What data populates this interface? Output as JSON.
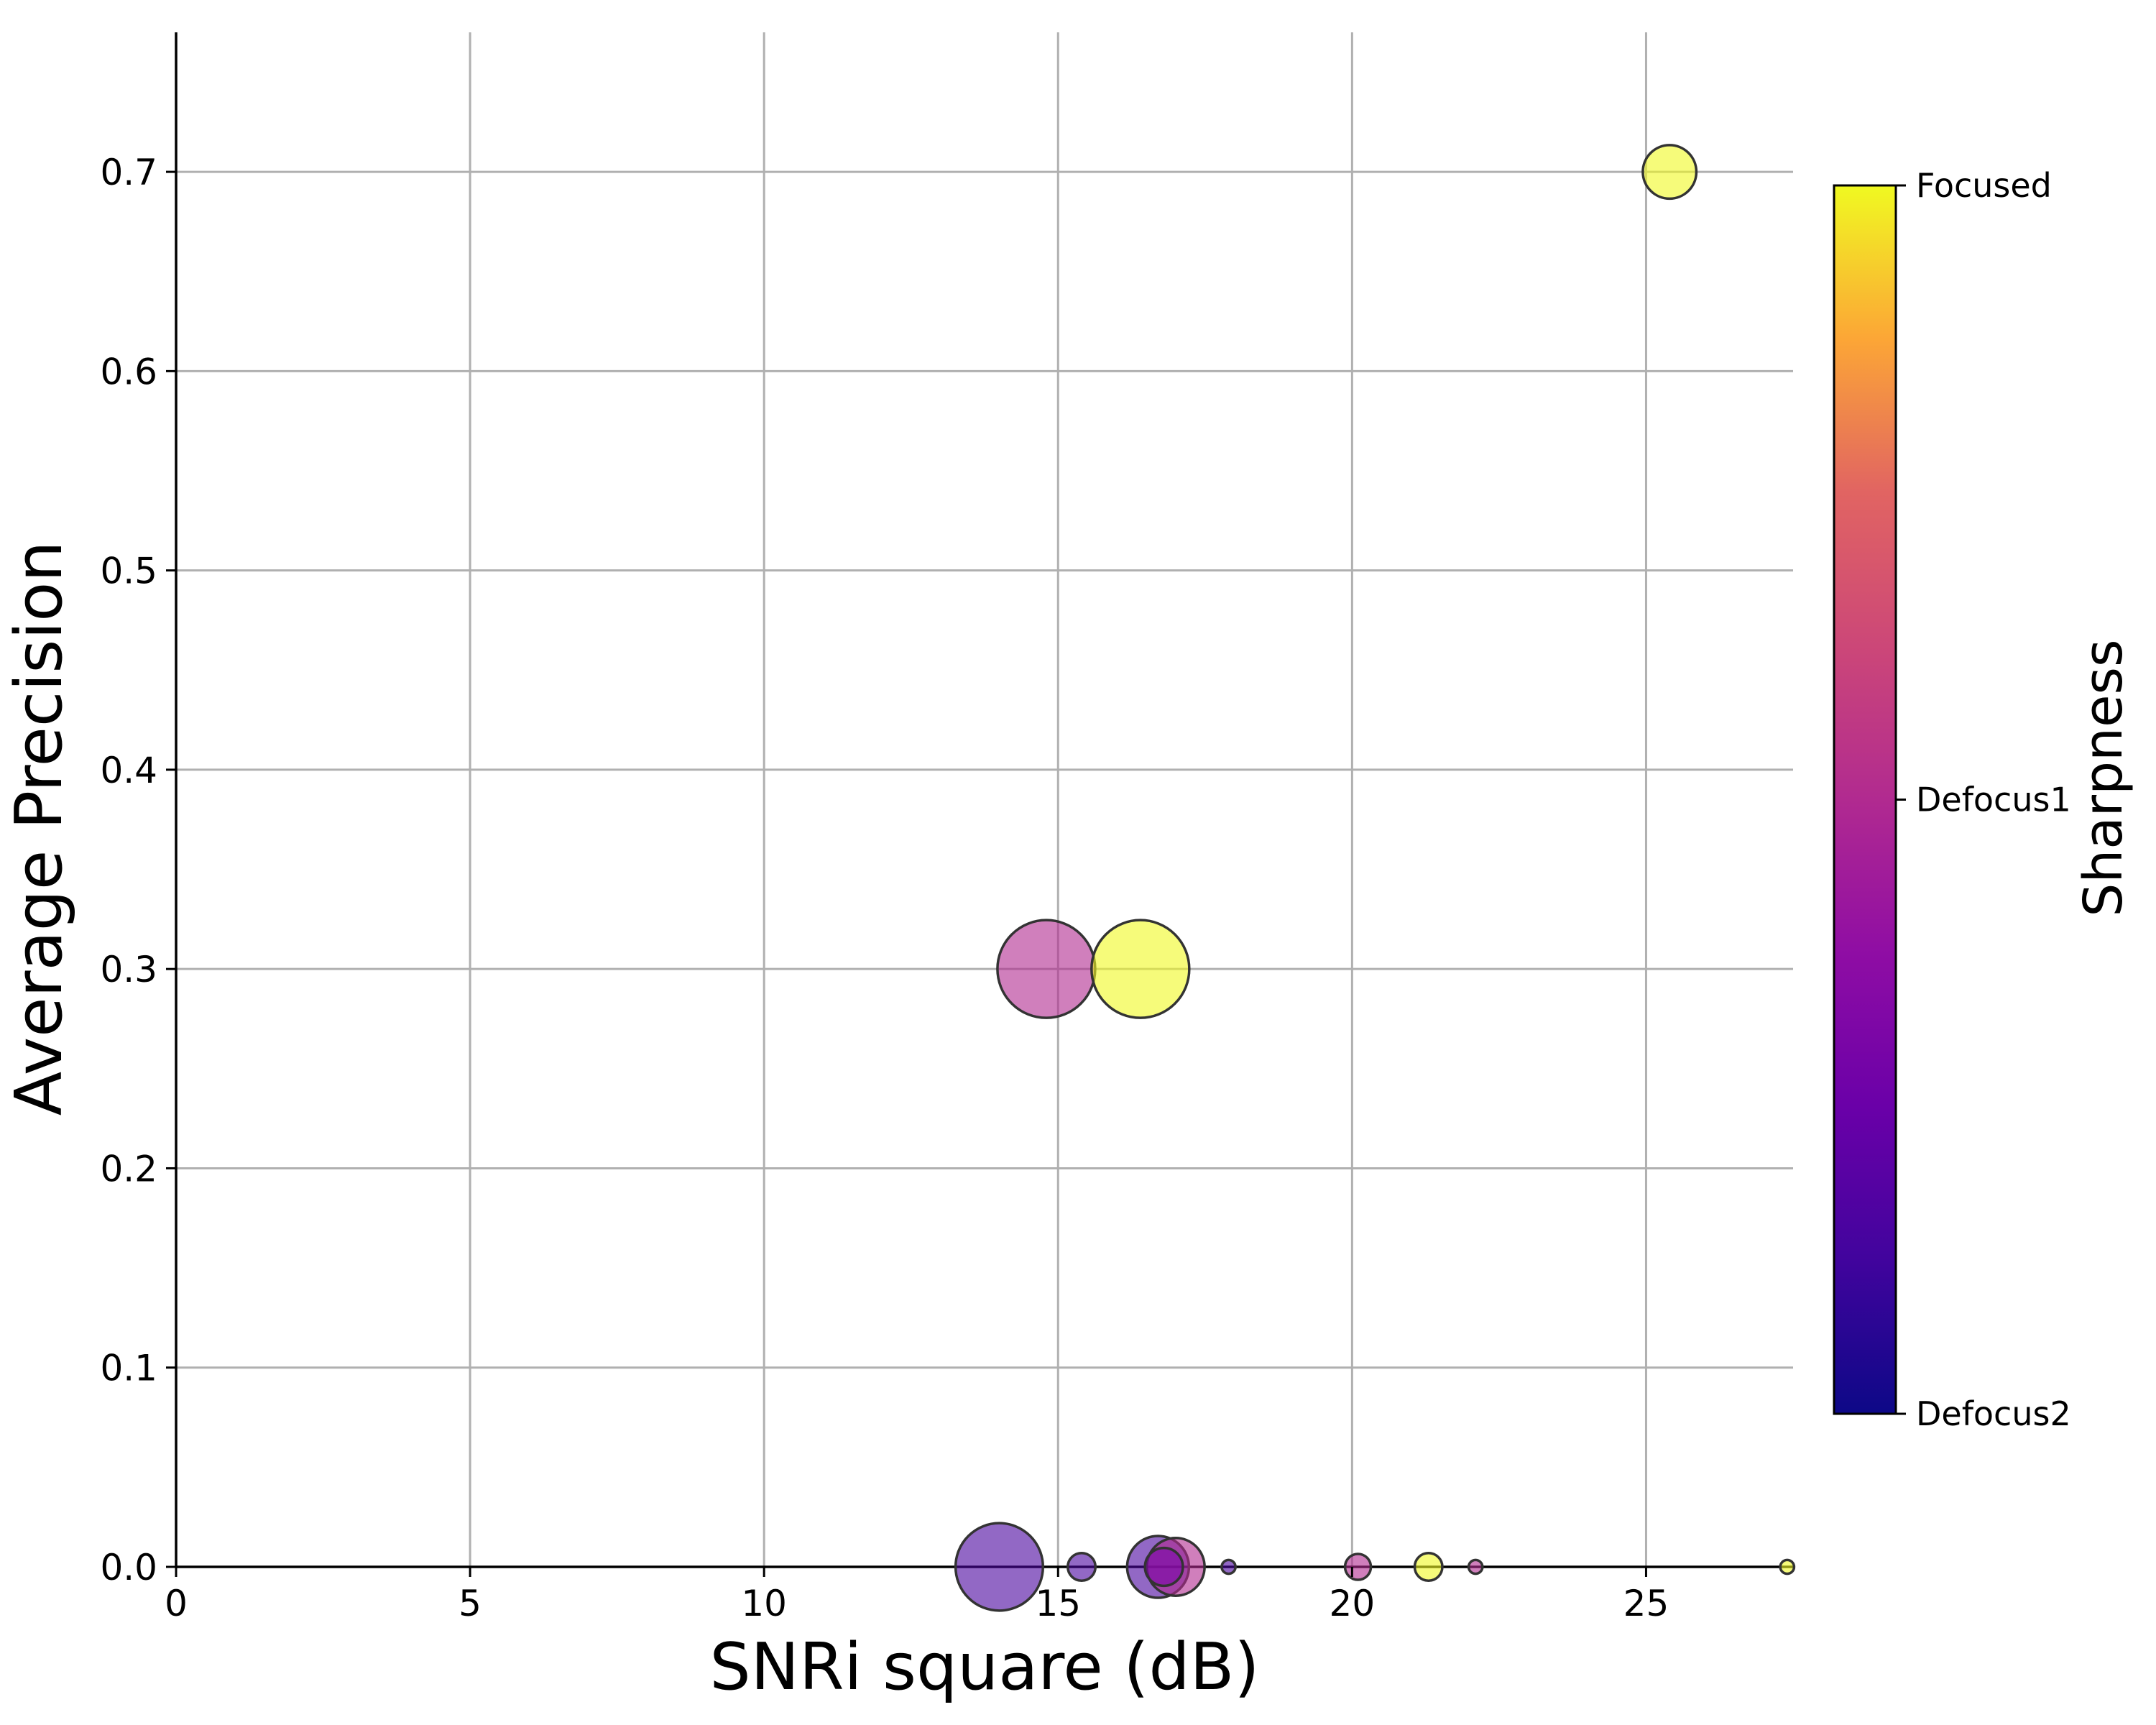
{
  "chart_data": {
    "type": "scatter",
    "title": "",
    "xlabel": "SNRi square (dB)",
    "ylabel": "Average Precision",
    "xlim": [
      0,
      27.5
    ],
    "ylim": [
      0,
      0.77
    ],
    "x_ticks": [
      0,
      5,
      10,
      15,
      20,
      25
    ],
    "y_ticks": [
      0.0,
      0.1,
      0.2,
      0.3,
      0.4,
      0.5,
      0.6,
      0.7
    ],
    "x_tick_labels": [
      "0",
      "5",
      "10",
      "15",
      "20",
      "25"
    ],
    "y_tick_labels": [
      "0.0",
      "0.1",
      "0.2",
      "0.3",
      "0.4",
      "0.5",
      "0.6",
      "0.7"
    ],
    "grid": true,
    "colorbar": {
      "label": "Sharpness",
      "colormap": "plasma",
      "ticks": [
        {
          "value": 0,
          "label": "Defocus2"
        },
        {
          "value": 1,
          "label": "Defocus1"
        },
        {
          "value": 2,
          "label": "Focused"
        }
      ]
    },
    "points": [
      {
        "x": 25.4,
        "y": 0.7,
        "size": 0.3,
        "sharpness": 2
      },
      {
        "x": 14.8,
        "y": 0.3,
        "size": 1.0,
        "sharpness": 1
      },
      {
        "x": 16.4,
        "y": 0.3,
        "size": 1.0,
        "sharpness": 2
      },
      {
        "x": 14.0,
        "y": 0.0,
        "size": 0.8,
        "sharpness": 0.3
      },
      {
        "x": 15.4,
        "y": 0.0,
        "size": 0.08,
        "sharpness": 0.3
      },
      {
        "x": 16.7,
        "y": 0.0,
        "size": 0.4,
        "sharpness": 0.3
      },
      {
        "x": 17.0,
        "y": 0.0,
        "size": 0.35,
        "sharpness": 1
      },
      {
        "x": 16.8,
        "y": 0.0,
        "size": 0.15,
        "sharpness": 0.6
      },
      {
        "x": 17.9,
        "y": 0.0,
        "size": 0.02,
        "sharpness": 0.3
      },
      {
        "x": 20.1,
        "y": 0.0,
        "size": 0.07,
        "sharpness": 1
      },
      {
        "x": 21.3,
        "y": 0.0,
        "size": 0.08,
        "sharpness": 2
      },
      {
        "x": 22.1,
        "y": 0.0,
        "size": 0.02,
        "sharpness": 1
      },
      {
        "x": 27.4,
        "y": 0.0,
        "size": 0.02,
        "sharpness": 2
      }
    ]
  }
}
